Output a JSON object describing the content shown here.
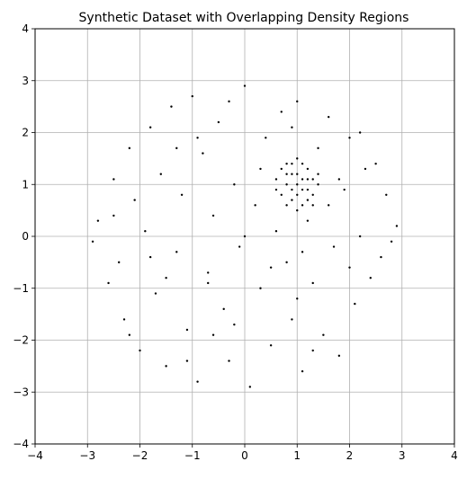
{
  "chart_data": {
    "type": "scatter",
    "title": "Synthetic Dataset with Overlapping Density Regions",
    "xlabel": "",
    "ylabel": "",
    "xlim": [
      -4,
      4
    ],
    "ylim": [
      -4,
      4
    ],
    "x_ticks": [
      -4,
      -3,
      -2,
      -1,
      0,
      1,
      2,
      3,
      4
    ],
    "y_ticks": [
      -4,
      -3,
      -2,
      -1,
      0,
      1,
      2,
      3,
      4
    ],
    "grid": true,
    "marker_color": "#000000",
    "grid_color": "#b0b0b0",
    "series": [
      {
        "region": "uniform disk centered at (0, 0), radius 3",
        "points": [
          [
            -2.8,
            0.3
          ],
          [
            -2.6,
            -0.9
          ],
          [
            -2.5,
            1.1
          ],
          [
            -2.3,
            -1.6
          ],
          [
            -2.2,
            1.7
          ],
          [
            -2.0,
            -2.2
          ],
          [
            -1.9,
            0.1
          ],
          [
            -1.8,
            2.1
          ],
          [
            -1.7,
            -1.1
          ],
          [
            -1.6,
            1.2
          ],
          [
            -1.5,
            -2.5
          ],
          [
            -1.4,
            2.5
          ],
          [
            -1.3,
            -0.3
          ],
          [
            -1.2,
            0.8
          ],
          [
            -1.1,
            -1.8
          ],
          [
            -1.0,
            2.7
          ],
          [
            -0.9,
            -2.8
          ],
          [
            -0.8,
            1.6
          ],
          [
            -0.7,
            -0.7
          ],
          [
            -0.6,
            0.4
          ],
          [
            -0.5,
            2.2
          ],
          [
            -0.4,
            -1.4
          ],
          [
            -0.3,
            -2.4
          ],
          [
            -0.2,
            1.0
          ],
          [
            -0.1,
            -0.2
          ],
          [
            0.0,
            2.9
          ],
          [
            0.1,
            -2.9
          ],
          [
            0.2,
            0.6
          ],
          [
            0.3,
            -1.0
          ],
          [
            0.4,
            1.9
          ],
          [
            0.5,
            -2.1
          ],
          [
            0.6,
            0.1
          ],
          [
            0.7,
            2.4
          ],
          [
            0.8,
            -0.5
          ],
          [
            0.9,
            -1.6
          ],
          [
            1.0,
            2.6
          ],
          [
            1.1,
            -2.6
          ],
          [
            1.2,
            0.3
          ],
          [
            1.3,
            -0.9
          ],
          [
            1.4,
            1.7
          ],
          [
            1.5,
            -1.9
          ],
          [
            1.6,
            2.3
          ],
          [
            1.7,
            -0.2
          ],
          [
            1.8,
            -2.3
          ],
          [
            1.9,
            0.9
          ],
          [
            2.0,
            1.9
          ],
          [
            2.1,
            -1.3
          ],
          [
            2.2,
            0.0
          ],
          [
            2.3,
            1.3
          ],
          [
            2.4,
            -0.8
          ],
          [
            2.5,
            1.4
          ],
          [
            2.6,
            -0.4
          ],
          [
            2.7,
            0.8
          ],
          [
            2.8,
            -0.1
          ],
          [
            2.9,
            0.2
          ],
          [
            -2.9,
            -0.1
          ],
          [
            -2.4,
            -0.5
          ],
          [
            -2.1,
            0.7
          ],
          [
            -1.5,
            -0.8
          ],
          [
            -0.9,
            1.9
          ],
          [
            -0.6,
            -1.9
          ],
          [
            0.0,
            0.0
          ],
          [
            0.5,
            -0.6
          ],
          [
            1.1,
            -0.3
          ],
          [
            1.6,
            0.6
          ],
          [
            2.0,
            -0.6
          ],
          [
            -1.1,
            -2.4
          ],
          [
            -0.3,
            2.6
          ],
          [
            0.9,
            2.1
          ],
          [
            1.3,
            -2.2
          ],
          [
            -2.2,
            -1.9
          ],
          [
            2.2,
            2.0
          ],
          [
            -2.5,
            0.4
          ],
          [
            -1.8,
            -0.4
          ],
          [
            -0.7,
            -0.9
          ],
          [
            0.3,
            1.3
          ],
          [
            1.0,
            -1.2
          ],
          [
            1.8,
            1.1
          ],
          [
            -1.3,
            1.7
          ],
          [
            -0.2,
            -1.7
          ]
        ]
      },
      {
        "region": "dense cluster centered near (1.0, 1.0), radius about 0.5",
        "points": [
          [
            0.6,
            1.1
          ],
          [
            0.7,
            0.8
          ],
          [
            0.7,
            1.3
          ],
          [
            0.8,
            0.6
          ],
          [
            0.8,
            1.0
          ],
          [
            0.8,
            1.4
          ],
          [
            0.9,
            0.7
          ],
          [
            0.9,
            1.2
          ],
          [
            0.9,
            0.9
          ],
          [
            1.0,
            0.5
          ],
          [
            1.0,
            1.5
          ],
          [
            1.0,
            1.0
          ],
          [
            1.0,
            0.8
          ],
          [
            1.0,
            1.2
          ],
          [
            1.1,
            0.6
          ],
          [
            1.1,
            1.1
          ],
          [
            1.1,
            1.4
          ],
          [
            1.2,
            0.7
          ],
          [
            1.2,
            0.9
          ],
          [
            1.2,
            1.3
          ],
          [
            1.3,
            0.8
          ],
          [
            1.3,
            1.1
          ],
          [
            1.4,
            1.0
          ],
          [
            1.4,
            1.2
          ],
          [
            0.6,
            0.9
          ],
          [
            0.9,
            1.4
          ],
          [
            1.1,
            0.9
          ],
          [
            1.3,
            0.6
          ],
          [
            0.8,
            1.2
          ],
          [
            1.2,
            1.1
          ]
        ]
      }
    ]
  }
}
